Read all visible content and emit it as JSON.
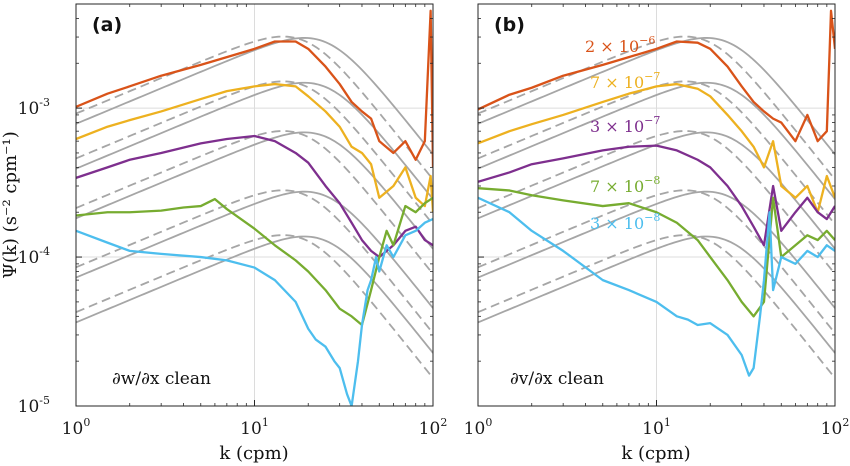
{
  "chart_data": [
    {
      "type": "line",
      "panel": "(a)",
      "annotation": "∂w/∂x clean",
      "xlabel": "k (cpm)",
      "ylabel": "Ψ(k) (s⁻² cpm⁻¹)",
      "xscale": "log",
      "yscale": "log",
      "xlim": [
        1,
        100
      ],
      "ylim": [
        1e-05,
        0.005
      ],
      "grid": "major",
      "x_ticks": [
        {
          "base": "10",
          "exp": "0"
        },
        {
          "base": "10",
          "exp": "1"
        },
        {
          "base": "10",
          "exp": "2"
        }
      ],
      "y_ticks": [
        {
          "base": "10",
          "exp": "-5"
        },
        {
          "base": "10",
          "exp": "-4"
        },
        {
          "base": "10",
          "exp": "-3"
        }
      ],
      "series": [
        {
          "color": "#d95319",
          "x": [
            1,
            1.5,
            2,
            3,
            5,
            7,
            10,
            13,
            17,
            20,
            25,
            30,
            35,
            40,
            45,
            50,
            60,
            70,
            80,
            90,
            97,
            100
          ],
          "y": [
            0.00102,
            0.00125,
            0.0014,
            0.00165,
            0.00195,
            0.0022,
            0.0025,
            0.0028,
            0.0028,
            0.0025,
            0.0019,
            0.00145,
            0.0011,
            0.00095,
            0.00085,
            0.0006,
            0.0005,
            0.0006,
            0.00045,
            0.0006,
            0.0045,
            0.0004
          ]
        },
        {
          "color": "#edb120",
          "x": [
            1,
            1.5,
            2,
            3,
            5,
            7,
            10,
            13,
            17,
            20,
            25,
            30,
            35,
            40,
            45,
            50,
            60,
            70,
            80,
            90,
            97,
            100
          ],
          "y": [
            0.00062,
            0.00075,
            0.00083,
            0.00095,
            0.00115,
            0.0013,
            0.0014,
            0.00145,
            0.0014,
            0.0012,
            0.00095,
            0.00075,
            0.00055,
            0.0005,
            0.00042,
            0.00025,
            0.0003,
            0.0004,
            0.00025,
            0.00022,
            0.00035,
            0.0002
          ]
        },
        {
          "color": "#7e2f8e",
          "x": [
            1,
            1.5,
            2,
            3,
            5,
            7,
            10,
            13,
            17,
            20,
            25,
            30,
            35,
            40,
            45,
            50,
            60,
            70,
            80,
            90,
            100
          ],
          "y": [
            0.00034,
            0.0004,
            0.00045,
            0.0005,
            0.00058,
            0.00062,
            0.00065,
            0.0006,
            0.0005,
            0.00043,
            0.0003,
            0.00023,
            0.00017,
            0.00013,
            0.00011,
            0.0001,
            0.00012,
            0.00015,
            0.00016,
            0.00013,
            0.00012
          ]
        },
        {
          "color": "#77ac30",
          "x": [
            1,
            1.5,
            2,
            3,
            4,
            5,
            6,
            7,
            10,
            13,
            17,
            20,
            25,
            30,
            35,
            40,
            45,
            50,
            55,
            60,
            70,
            80,
            90,
            100
          ],
          "y": [
            0.00019,
            0.0002,
            0.0002,
            0.000205,
            0.000215,
            0.00022,
            0.000245,
            0.00021,
            0.000155,
            0.00012,
            9.5e-05,
            8e-05,
            6e-05,
            4.5e-05,
            4e-05,
            3.5e-05,
            6e-05,
            0.0001,
            0.00015,
            0.00012,
            0.00022,
            0.0002,
            0.00023,
            0.00025
          ]
        },
        {
          "color": "#4dbeee",
          "x": [
            1,
            1.5,
            2,
            3,
            5,
            7,
            10,
            13,
            17,
            20,
            22,
            25,
            28,
            30,
            33,
            35,
            38,
            40,
            43,
            45,
            48,
            50,
            55,
            60,
            70,
            80,
            90,
            100
          ],
          "y": [
            0.00015,
            0.000125,
            0.00011,
            0.000105,
            0.0001,
            9.5e-05,
            8.5e-05,
            7e-05,
            5e-05,
            3.3e-05,
            2.8e-05,
            2.5e-05,
            2e-05,
            1.8e-05,
            1.2e-05,
            1e-05,
            2e-05,
            3.5e-05,
            6e-05,
            7e-05,
            0.0001,
            8e-05,
            0.00012,
            0.0001,
            0.00014,
            0.00015,
            0.00017,
            0.00018
          ]
        }
      ]
    },
    {
      "type": "line",
      "panel": "(b)",
      "annotation": "∂v/∂x clean",
      "xlabel": "k (cpm)",
      "xscale": "log",
      "yscale": "log",
      "xlim": [
        1,
        100
      ],
      "ylim": [
        1e-05,
        0.005
      ],
      "grid": "major",
      "x_ticks": [
        {
          "base": "10",
          "exp": "0"
        },
        {
          "base": "10",
          "exp": "1"
        },
        {
          "base": "10",
          "exp": "2"
        }
      ],
      "series": [
        {
          "color": "#d95319",
          "label_base": "2 × 10",
          "label_exp": "−6",
          "x": [
            1,
            1.5,
            2,
            3,
            5,
            7,
            10,
            13,
            17,
            20,
            25,
            30,
            35,
            40,
            45,
            50,
            60,
            70,
            80,
            90,
            95,
            100
          ],
          "y": [
            0.00098,
            0.00123,
            0.00137,
            0.00165,
            0.00195,
            0.0022,
            0.0025,
            0.0028,
            0.00275,
            0.0025,
            0.0019,
            0.0014,
            0.0011,
            0.00095,
            0.00085,
            0.0008,
            0.0006,
            0.0009,
            0.0006,
            0.0007,
            0.0045,
            0.0025
          ]
        },
        {
          "color": "#edb120",
          "label_base": "7 × 10",
          "label_exp": "−7",
          "x": [
            1,
            1.5,
            2,
            3,
            5,
            7,
            10,
            13,
            17,
            20,
            25,
            30,
            35,
            40,
            45,
            50,
            60,
            70,
            80,
            90,
            100
          ],
          "y": [
            0.00058,
            0.0007,
            0.00078,
            0.0009,
            0.0011,
            0.00125,
            0.0014,
            0.00145,
            0.00135,
            0.0012,
            0.0009,
            0.0007,
            0.00055,
            0.0004,
            0.0006,
            0.0003,
            0.00025,
            0.0003,
            0.0002,
            0.00035,
            0.00025
          ]
        },
        {
          "color": "#7e2f8e",
          "label_base": "3 × 10",
          "label_exp": "−7",
          "x": [
            1,
            1.5,
            2,
            3,
            5,
            7,
            10,
            13,
            17,
            20,
            25,
            30,
            35,
            40,
            45,
            50,
            60,
            70,
            80,
            90,
            100
          ],
          "y": [
            0.00032,
            0.00037,
            0.00042,
            0.00046,
            0.00052,
            0.00055,
            0.00056,
            0.00052,
            0.00045,
            0.0004,
            0.0003,
            0.00022,
            0.00016,
            0.00012,
            0.0003,
            0.00015,
            0.0002,
            0.00025,
            0.0002,
            0.00018,
            0.00022
          ]
        },
        {
          "color": "#77ac30",
          "label_base": "7 × 10",
          "label_exp": "−8",
          "x": [
            1,
            1.5,
            2,
            3,
            5,
            7,
            10,
            13,
            17,
            20,
            25,
            30,
            35,
            40,
            45,
            50,
            60,
            70,
            80,
            90,
            100
          ],
          "y": [
            0.00029,
            0.00028,
            0.00026,
            0.00024,
            0.00022,
            0.00023,
            0.0002,
            0.00017,
            0.00013,
            0.0001,
            7e-05,
            5e-05,
            4e-05,
            5e-05,
            0.00025,
            0.0001,
            0.00012,
            0.00014,
            0.00013,
            0.00015,
            0.00013
          ]
        },
        {
          "color": "#4dbeee",
          "label_base": "3 × 10",
          "label_exp": "−8",
          "x": [
            1,
            1.5,
            2,
            3,
            5,
            7,
            10,
            13,
            15,
            17,
            20,
            25,
            30,
            33,
            35,
            38,
            40,
            43,
            45,
            50,
            60,
            70,
            80,
            90,
            100
          ],
          "y": [
            0.00025,
            0.0002,
            0.00015,
            0.00011,
            7e-05,
            6e-05,
            5e-05,
            4e-05,
            3.8e-05,
            3.5e-05,
            3.6e-05,
            3e-05,
            2.2e-05,
            1.6e-05,
            1.8e-05,
            4e-05,
            7e-05,
            0.0002,
            6e-05,
            0.0001,
            9e-05,
            0.00011,
            0.0001,
            0.00012,
            0.00011
          ]
        }
      ]
    }
  ],
  "model_curves": {
    "color": "#a6a6a6",
    "amplitudes": [
      0.0028,
      0.0014,
      0.00065,
      0.00026,
      0.00013
    ],
    "variants": [
      {
        "style": "solid",
        "kp": 14,
        "kc": 25,
        "n": 4
      },
      {
        "style": "dashed",
        "kp": 10,
        "kc": 19,
        "n": 4
      }
    ]
  }
}
